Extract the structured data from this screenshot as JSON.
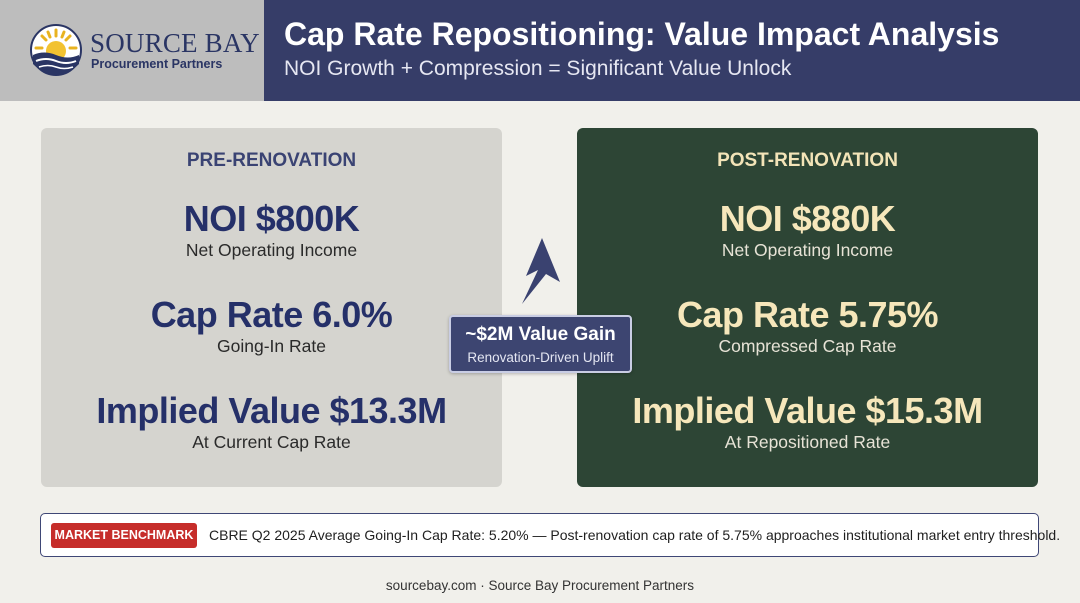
{
  "brand": {
    "name": "SOURCE BAY",
    "tagline": "Procurement Partners",
    "logo_icon": "sun-over-waves-icon"
  },
  "header": {
    "title": "Cap Rate Repositioning: Value Impact Analysis",
    "subtitle": "NOI Growth + Compression = Significant Value Unlock"
  },
  "pre": {
    "label": "PRE-RENOVATION",
    "noi": "NOI $800K",
    "noi_sub": "Net Operating Income",
    "cap": "Cap Rate 6.0%",
    "cap_sub": "Going-In Rate",
    "value": "Implied Value $13.3M",
    "value_sub": "At Current Cap Rate"
  },
  "post": {
    "label": "POST-RENOVATION",
    "noi": "NOI $880K",
    "noi_sub": "Net Operating Income",
    "cap": "Cap Rate 5.75%",
    "cap_sub": "Compressed Cap Rate",
    "value": "Implied Value $15.3M",
    "value_sub": "At Repositioned Rate"
  },
  "gain": {
    "title": "~$2M Value Gain",
    "subtitle": "Renovation-Driven Uplift",
    "icon": "up-arrow-icon"
  },
  "benchmark": {
    "badge": "MARKET BENCHMARK",
    "text": "CBRE Q2 2025 Average Going-In Cap Rate: 5.20% — Post-renovation cap rate of 5.75% approaches institutional market entry threshold."
  },
  "footer": "sourcebay.com · Source Bay Procurement Partners",
  "colors": {
    "header_bg": "#363d68",
    "logo_bg": "#bdbdbd",
    "pre_panel": "#d5d4cf",
    "post_panel": "#2d4535",
    "navy_text": "#253069",
    "cream_text": "#f6e7bb",
    "badge_red": "#c62d2a"
  }
}
